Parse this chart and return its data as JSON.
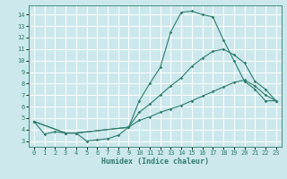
{
  "xlabel": "Humidex (Indice chaleur)",
  "bg_color": "#cce8ec",
  "grid_color": "#ffffff",
  "line_color": "#2e7d6e",
  "xlim": [
    -0.5,
    23.5
  ],
  "ylim": [
    2.5,
    14.8
  ],
  "yticks": [
    3,
    4,
    5,
    6,
    7,
    8,
    9,
    10,
    11,
    12,
    13,
    14
  ],
  "xticks": [
    0,
    1,
    2,
    3,
    4,
    5,
    6,
    7,
    8,
    9,
    10,
    11,
    12,
    13,
    14,
    15,
    16,
    17,
    18,
    19,
    20,
    21,
    22,
    23
  ],
  "line1_x": [
    0,
    1,
    2,
    3,
    4,
    5,
    6,
    7,
    8,
    9,
    10,
    11,
    12,
    13,
    14,
    15,
    16,
    17,
    18,
    19,
    20,
    21,
    22,
    23
  ],
  "line1_y": [
    4.7,
    3.6,
    3.8,
    3.7,
    3.7,
    3.0,
    3.1,
    3.2,
    3.5,
    4.2,
    6.5,
    8.0,
    9.4,
    12.5,
    14.2,
    14.3,
    14.0,
    13.8,
    11.8,
    10.0,
    8.2,
    7.5,
    6.5,
    6.5
  ],
  "line2_x": [
    0,
    3,
    4,
    9,
    10,
    11,
    12,
    13,
    14,
    15,
    16,
    17,
    18,
    19,
    20,
    21,
    22,
    23
  ],
  "line2_y": [
    4.7,
    3.7,
    3.7,
    4.2,
    5.5,
    6.2,
    7.0,
    7.8,
    8.5,
    9.5,
    10.2,
    10.8,
    11.0,
    10.5,
    9.8,
    8.2,
    7.5,
    6.5
  ],
  "line3_x": [
    0,
    3,
    4,
    9,
    10,
    11,
    12,
    13,
    14,
    15,
    16,
    17,
    18,
    19,
    20,
    21,
    22,
    23
  ],
  "line3_y": [
    4.7,
    3.7,
    3.7,
    4.2,
    4.8,
    5.1,
    5.5,
    5.8,
    6.1,
    6.5,
    6.9,
    7.3,
    7.7,
    8.1,
    8.3,
    7.8,
    7.0,
    6.5
  ]
}
